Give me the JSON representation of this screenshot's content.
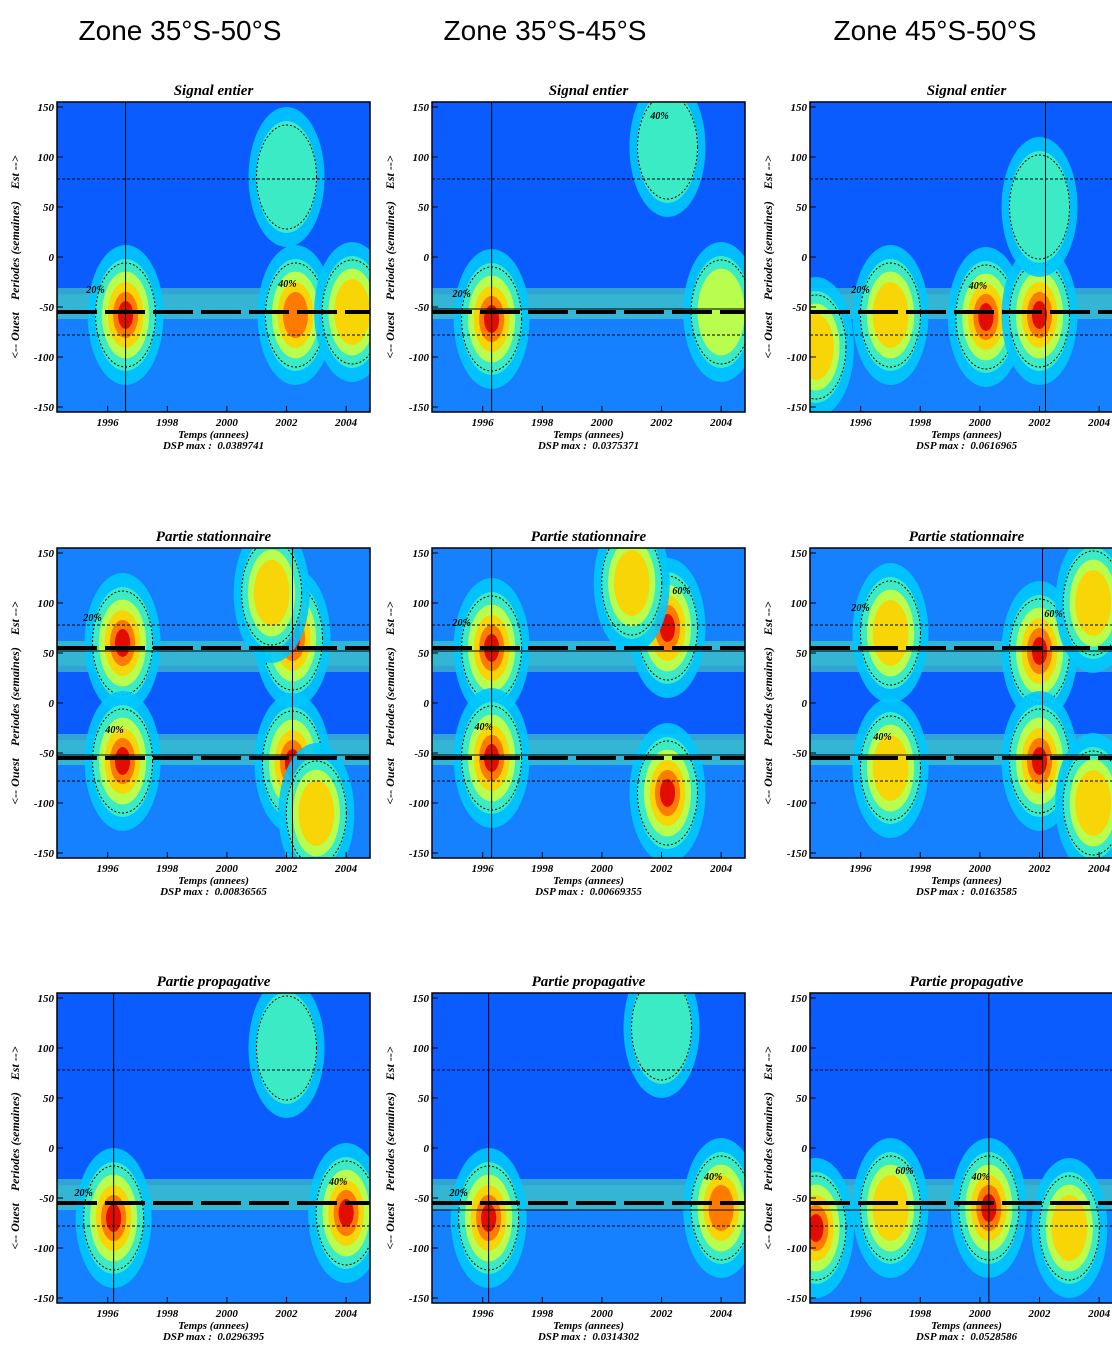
{
  "columns": [
    "Zone 35°S-50°S",
    "Zone 35°S-45°S",
    "Zone 45°S-50°S"
  ],
  "chart_data": [
    {
      "type": "heatmap",
      "title": "Signal entier",
      "ylabel": "<-- Ouest    Periodes (semaines)    Est -->",
      "xlabel": "Temps (annees)",
      "note": "DSP max :  0.0389741",
      "xlim": [
        1994.3,
        2004.8
      ],
      "ylim": [
        -155,
        155
      ],
      "xticks": [
        1996,
        1998,
        2000,
        2002,
        2004
      ],
      "yticks": [
        -150,
        -100,
        -50,
        0,
        50,
        100,
        150
      ],
      "vline": 1996.6,
      "hlines": [],
      "dashed_hlines": [
        78,
        -78
      ],
      "ridges": [
        -55
      ],
      "contour_labels": [
        "20%",
        "40%"
      ],
      "hotspots": [
        {
          "x": 1996.6,
          "y": -58,
          "level": 1
        },
        {
          "x": 2002.3,
          "y": -58,
          "level": 0.8
        },
        {
          "x": 2004.2,
          "y": -55,
          "level": 0.7
        },
        {
          "x": 2002,
          "y": 80,
          "level": 0.35
        }
      ]
    },
    {
      "type": "heatmap",
      "title": "Signal entier",
      "ylabel": "<-- Ouest    Periodes (semaines)    Est -->",
      "xlabel": "Temps (annees)",
      "note": "DSP max :  0.0375371",
      "xlim": [
        1994.3,
        2004.8
      ],
      "ylim": [
        -155,
        155
      ],
      "xticks": [
        1996,
        1998,
        2000,
        2002,
        2004
      ],
      "yticks": [
        -150,
        -100,
        -50,
        0,
        50,
        100,
        150
      ],
      "vline": 1996.3,
      "hlines": [
        -52
      ],
      "dashed_hlines": [
        78,
        -78
      ],
      "ridges": [
        -55
      ],
      "contour_labels": [
        "20%",
        "40%"
      ],
      "hotspots": [
        {
          "x": 1996.3,
          "y": -62,
          "level": 1
        },
        {
          "x": 2002.2,
          "y": 110,
          "level": 0.35
        },
        {
          "x": 2004,
          "y": -55,
          "level": 0.5
        }
      ]
    },
    {
      "type": "heatmap",
      "title": "Signal entier",
      "ylabel": "<-- Ouest    Periodes (semaines)    Est -->",
      "xlabel": "Temps (annees)",
      "note": "DSP max :  0.0616965",
      "xlim": [
        1994.3,
        2004.8
      ],
      "ylim": [
        -155,
        155
      ],
      "xticks": [
        1996,
        1998,
        2000,
        2002,
        2004
      ],
      "yticks": [
        -150,
        -100,
        -50,
        0,
        50,
        100,
        150
      ],
      "vline": 2002.2,
      "hlines": [],
      "dashed_hlines": [
        78,
        -78
      ],
      "ridges": [
        -55
      ],
      "contour_labels": [
        "20%",
        "40%"
      ],
      "hotspots": [
        {
          "x": 1997,
          "y": -58,
          "level": 0.7
        },
        {
          "x": 2000.2,
          "y": -60,
          "level": 0.9
        },
        {
          "x": 2002,
          "y": -58,
          "level": 1
        },
        {
          "x": 1994.5,
          "y": -90,
          "level": 0.7
        },
        {
          "x": 2002,
          "y": 50,
          "level": 0.35
        }
      ]
    },
    {
      "type": "heatmap",
      "title": "Partie stationnaire",
      "ylabel": "<-- Ouest    Periodes (semaines)    Est -->",
      "xlabel": "Temps (annees)",
      "note": "DSP max :  0.00836565",
      "xlim": [
        1994.3,
        2004.8
      ],
      "ylim": [
        -155,
        155
      ],
      "xticks": [
        1996,
        1998,
        2000,
        2002,
        2004
      ],
      "yticks": [
        -150,
        -100,
        -50,
        0,
        50,
        100,
        150
      ],
      "vline": 2002.2,
      "hlines": [
        52,
        -52
      ],
      "dashed_hlines": [
        78,
        -78
      ],
      "ridges": [
        55,
        -55
      ],
      "contour_labels": [
        "20%",
        "40%"
      ],
      "hotspots": [
        {
          "x": 1996.5,
          "y": 60,
          "level": 0.9
        },
        {
          "x": 1996.5,
          "y": -58,
          "level": 0.9
        },
        {
          "x": 2002.2,
          "y": 65,
          "level": 1
        },
        {
          "x": 2002.2,
          "y": -60,
          "level": 1
        },
        {
          "x": 2003,
          "y": -110,
          "level": 0.6
        },
        {
          "x": 2001.5,
          "y": 110,
          "level": 0.6
        }
      ]
    },
    {
      "type": "heatmap",
      "title": "Partie stationnaire",
      "ylabel": "<-- Ouest    Periodes (semaines)    Est -->",
      "xlabel": "Temps (annees)",
      "note": "DSP max :  0.00669355",
      "xlim": [
        1994.3,
        2004.8
      ],
      "ylim": [
        -155,
        155
      ],
      "xticks": [
        1996,
        1998,
        2000,
        2002,
        2004
      ],
      "yticks": [
        -150,
        -100,
        -50,
        0,
        50,
        100,
        150
      ],
      "vline": 1996.3,
      "hlines": [
        52,
        -52
      ],
      "dashed_hlines": [
        78,
        -78
      ],
      "ridges": [
        55,
        -55
      ],
      "contour_labels": [
        "20%",
        "40%",
        "60%"
      ],
      "hotspots": [
        {
          "x": 1996.3,
          "y": 55,
          "level": 0.9
        },
        {
          "x": 1996.3,
          "y": -55,
          "level": 0.9
        },
        {
          "x": 2002.2,
          "y": 75,
          "level": 1
        },
        {
          "x": 2002.2,
          "y": -90,
          "level": 0.9
        },
        {
          "x": 2001,
          "y": 120,
          "level": 0.7
        }
      ]
    },
    {
      "type": "heatmap",
      "title": "Partie stationnaire",
      "ylabel": "<-- Ouest    Periodes (semaines)    Est -->",
      "xlabel": "Temps (annees)",
      "note": "DSP max :  0.0163585",
      "xlim": [
        1994.3,
        2004.8
      ],
      "ylim": [
        -155,
        155
      ],
      "xticks": [
        1996,
        1998,
        2000,
        2002,
        2004
      ],
      "yticks": [
        -150,
        -100,
        -50,
        0,
        50,
        100,
        150
      ],
      "vline": 2002.1,
      "hlines": [
        52,
        -52
      ],
      "dashed_hlines": [
        78,
        -78
      ],
      "ridges": [
        55,
        -55
      ],
      "contour_labels": [
        "20%",
        "40%",
        "60%"
      ],
      "hotspots": [
        {
          "x": 1997,
          "y": 70,
          "level": 0.7
        },
        {
          "x": 1997,
          "y": -65,
          "level": 0.7
        },
        {
          "x": 2002,
          "y": 52,
          "level": 1
        },
        {
          "x": 2002,
          "y": -58,
          "level": 1
        },
        {
          "x": 2003.8,
          "y": 100,
          "level": 0.7
        },
        {
          "x": 2003.8,
          "y": -100,
          "level": 0.7
        }
      ]
    },
    {
      "type": "heatmap",
      "title": "Partie propagative",
      "ylabel": "<-- Ouest    Periodes (semaines)    Est -->",
      "xlabel": "Temps (annees)",
      "note": "DSP max :  0.0296395",
      "xlim": [
        1994.3,
        2004.8
      ],
      "ylim": [
        -155,
        155
      ],
      "xticks": [
        1996,
        1998,
        2000,
        2002,
        2004
      ],
      "yticks": [
        -150,
        -100,
        -50,
        0,
        50,
        100,
        150
      ],
      "vline": 1996.2,
      "hlines": [],
      "dashed_hlines": [
        78,
        -78
      ],
      "ridges": [
        -55
      ],
      "contour_labels": [
        "20%",
        "40%"
      ],
      "hotspots": [
        {
          "x": 1996.2,
          "y": -70,
          "level": 1
        },
        {
          "x": 2004,
          "y": -65,
          "level": 1
        },
        {
          "x": 2002,
          "y": 100,
          "level": 0.35
        }
      ]
    },
    {
      "type": "heatmap",
      "title": "Partie propagative",
      "ylabel": "<-- Ouest    Periodes (semaines)    Est -->",
      "xlabel": "Temps (annees)",
      "note": "DSP max :  0.0314302",
      "xlim": [
        1994.3,
        2004.8
      ],
      "ylim": [
        -155,
        155
      ],
      "xticks": [
        1996,
        1998,
        2000,
        2002,
        2004
      ],
      "yticks": [
        -150,
        -100,
        -50,
        0,
        50,
        100,
        150
      ],
      "vline": 1996.2,
      "hlines": [
        -62
      ],
      "dashed_hlines": [
        78,
        -78
      ],
      "ridges": [
        -55
      ],
      "contour_labels": [
        "20%",
        "40%"
      ],
      "hotspots": [
        {
          "x": 1996.2,
          "y": -70,
          "level": 1
        },
        {
          "x": 2004,
          "y": -60,
          "level": 0.8
        },
        {
          "x": 2002,
          "y": 120,
          "level": 0.35
        }
      ]
    },
    {
      "type": "heatmap",
      "title": "Partie propagative",
      "ylabel": "<-- Ouest    Periodes (semaines)    Est -->",
      "xlabel": "Temps (annees)",
      "note": "DSP max :  0.0528586",
      "xlim": [
        1994.3,
        2004.8
      ],
      "ylim": [
        -155,
        155
      ],
      "xticks": [
        1996,
        1998,
        2000,
        2002,
        2004
      ],
      "yticks": [
        -150,
        -100,
        -50,
        0,
        50,
        100,
        150
      ],
      "vline": 2000.3,
      "hlines": [
        -62
      ],
      "dashed_hlines": [
        78,
        -78
      ],
      "ridges": [
        -55
      ],
      "contour_labels": [
        "20%",
        "40%",
        "60%"
      ],
      "hotspots": [
        {
          "x": 1994.5,
          "y": -80,
          "level": 1
        },
        {
          "x": 2000.3,
          "y": -60,
          "level": 1
        },
        {
          "x": 1997,
          "y": -60,
          "level": 0.7
        },
        {
          "x": 2003,
          "y": -80,
          "level": 0.6
        }
      ]
    }
  ]
}
